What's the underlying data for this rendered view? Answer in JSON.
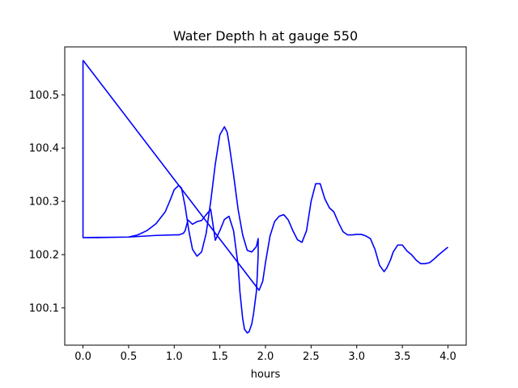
{
  "chart_data": {
    "type": "line",
    "title": "Water Depth h at gauge 550",
    "xlabel": "hours",
    "ylabel": "",
    "xlim": [
      -0.2,
      4.2
    ],
    "ylim": [
      100.03,
      100.59
    ],
    "grid": false,
    "line_color": "#0000ff",
    "xticks": [
      {
        "value": 0.0,
        "label": "0.0"
      },
      {
        "value": 0.5,
        "label": "0.5"
      },
      {
        "value": 1.0,
        "label": "1.0"
      },
      {
        "value": 1.5,
        "label": "1.5"
      },
      {
        "value": 2.0,
        "label": "2.0"
      },
      {
        "value": 2.5,
        "label": "2.5"
      },
      {
        "value": 3.0,
        "label": "3.0"
      },
      {
        "value": 3.5,
        "label": "3.5"
      },
      {
        "value": 4.0,
        "label": "4.0"
      }
    ],
    "yticks": [
      {
        "value": 100.1,
        "label": "100.1"
      },
      {
        "value": 100.2,
        "label": "100.2"
      },
      {
        "value": 100.3,
        "label": "100.3"
      },
      {
        "value": 100.4,
        "label": "100.4"
      },
      {
        "value": 100.5,
        "label": "100.5"
      }
    ],
    "series": [
      {
        "x": [
          0.0,
          0.0,
          0.5,
          0.6,
          0.7,
          0.8,
          0.9,
          0.95,
          1.0,
          1.05,
          1.08,
          1.12,
          1.16,
          1.2,
          1.25,
          1.3,
          1.35,
          1.4,
          1.45,
          1.5,
          1.55,
          1.58,
          1.6,
          1.65,
          1.7,
          1.75,
          1.8,
          1.85,
          1.9,
          1.92,
          1.92,
          1.91,
          1.9,
          1.87,
          1.85,
          1.82,
          1.8,
          1.77,
          1.75,
          1.72,
          1.7,
          1.65,
          1.6,
          1.55,
          1.5,
          1.45,
          1.4,
          1.35,
          1.3,
          1.25,
          1.2,
          1.15,
          1.12,
          1.1,
          1.05,
          1.0,
          0.8,
          0.5,
          0.2,
          0.0,
          0.0,
          0.0
        ],
        "y": [
          100.565,
          100.232,
          100.233,
          100.237,
          100.245,
          100.258,
          100.28,
          100.3,
          100.322,
          100.33,
          100.325,
          100.29,
          100.245,
          100.21,
          100.197,
          100.205,
          100.24,
          100.3,
          100.37,
          100.425,
          100.44,
          100.43,
          100.41,
          100.35,
          100.285,
          100.237,
          100.208,
          100.205,
          100.215,
          100.23,
          100.2,
          100.16,
          100.13,
          100.09,
          100.07,
          100.055,
          100.053,
          100.06,
          100.08,
          100.13,
          100.18,
          100.245,
          100.272,
          100.266,
          100.245,
          100.227,
          100.285,
          100.275,
          100.264,
          100.262,
          100.257,
          100.265,
          100.245,
          100.24,
          100.237,
          100.237,
          100.236,
          100.233,
          100.232,
          100.232,
          100.565,
          100.565
        ]
      },
      {
        "x": [
          0.0,
          1.93,
          1.93,
          1.97,
          2.0,
          2.05,
          2.1,
          2.15,
          2.2,
          2.25,
          2.3,
          2.35,
          2.4,
          2.45,
          2.5,
          2.55,
          2.6,
          2.65,
          2.7,
          2.75,
          2.8,
          2.85,
          2.9,
          2.95,
          3.0,
          3.05,
          3.1,
          3.15,
          3.2,
          3.25,
          3.3,
          3.33,
          3.37,
          3.4,
          3.45,
          3.5,
          3.55,
          3.6,
          3.65,
          3.7,
          3.75,
          3.8,
          3.85,
          3.9,
          3.95,
          4.0
        ],
        "y": [
          100.565,
          100.133,
          100.133,
          100.15,
          100.185,
          100.235,
          100.262,
          100.272,
          100.275,
          100.265,
          100.245,
          100.228,
          100.223,
          100.245,
          100.3,
          100.333,
          100.333,
          100.305,
          100.288,
          100.28,
          100.26,
          100.243,
          100.237,
          100.237,
          100.238,
          100.238,
          100.235,
          100.23,
          100.21,
          100.18,
          100.168,
          100.175,
          100.19,
          100.205,
          100.218,
          100.218,
          100.207,
          100.2,
          100.19,
          100.183,
          100.183,
          100.185,
          100.192,
          100.2,
          100.207,
          100.214
        ]
      }
    ]
  }
}
